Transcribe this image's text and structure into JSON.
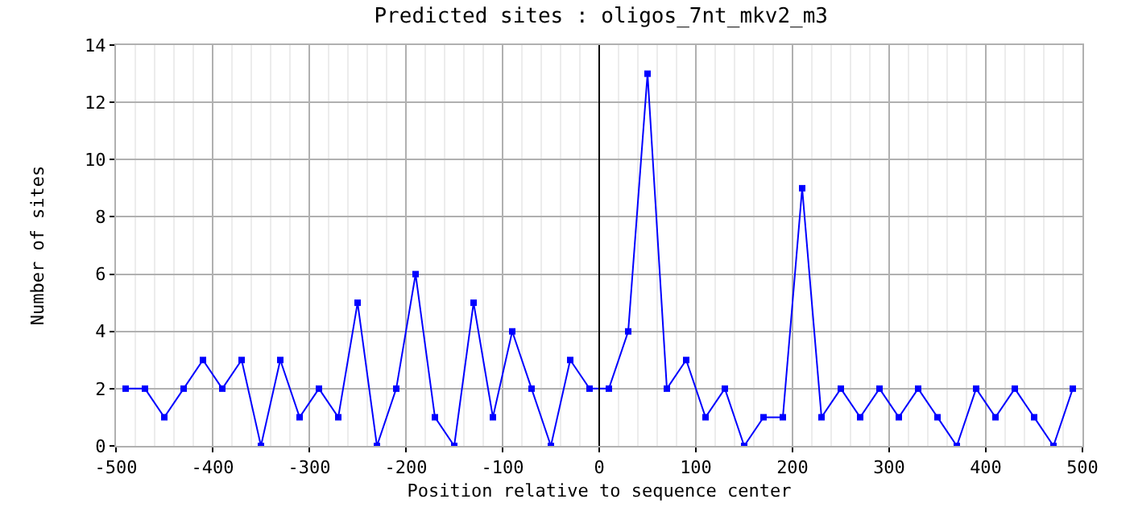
{
  "chart_data": {
    "type": "line",
    "title": "Predicted sites : oligos_7nt_mkv2_m3",
    "xlabel": "Position relative to sequence center",
    "ylabel": "Number of sites",
    "x": [
      -490,
      -470,
      -450,
      -430,
      -410,
      -390,
      -370,
      -350,
      -330,
      -310,
      -290,
      -270,
      -250,
      -230,
      -210,
      -190,
      -170,
      -150,
      -130,
      -110,
      -90,
      -70,
      -50,
      -30,
      -10,
      10,
      30,
      50,
      70,
      90,
      110,
      130,
      150,
      170,
      190,
      210,
      230,
      250,
      270,
      290,
      310,
      330,
      350,
      370,
      390,
      410,
      430,
      450,
      470,
      490
    ],
    "series": [
      {
        "color": "#0000ff",
        "values": [
          2,
          2,
          1,
          2,
          3,
          2,
          3,
          0,
          3,
          1,
          2,
          1,
          5,
          0,
          2,
          6,
          1,
          0,
          5,
          1,
          4,
          2,
          0,
          3,
          2,
          2,
          4,
          13,
          2,
          3,
          1,
          2,
          0,
          1,
          1,
          9,
          1,
          2,
          1,
          2,
          1,
          2,
          1,
          0,
          2,
          1,
          2,
          1,
          0,
          2
        ]
      }
    ],
    "xlim": [
      -500,
      500
    ],
    "xticks": [
      -500,
      -400,
      -300,
      -200,
      -100,
      0,
      100,
      200,
      300,
      400,
      500
    ],
    "ylim": [
      0,
      14
    ],
    "yticks": [
      0,
      2,
      4,
      6,
      8,
      10,
      12,
      14
    ],
    "grid": true,
    "marker": "square",
    "line_style": "solid",
    "ref_lines": [
      {
        "axis": "x",
        "value": 0,
        "color": "#000000"
      }
    ]
  }
}
